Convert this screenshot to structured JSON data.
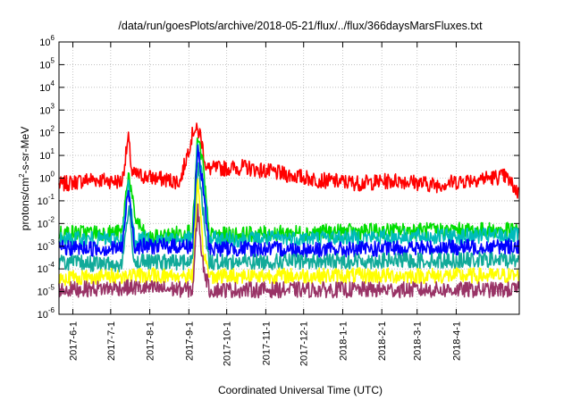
{
  "chart_data": {
    "type": "line",
    "title": "/data/run/goesPlots/archive/2018-05-21/flux/../flux/366daysMarsFluxes.txt",
    "xlabel": "Coordinated Universal Time (UTC)",
    "ylabel_parts": [
      "protons/cm",
      "2",
      "-s-sr-MeV"
    ],
    "yscale": "log",
    "ylim": [
      1e-06,
      1000000.0
    ],
    "xlim": [
      "2017-05-21",
      "2018-05-21"
    ],
    "grid": true,
    "x_ticks": [
      "2017-6-1",
      "2017-7-1",
      "2017-8-1",
      "2017-9-1",
      "2017-10-1",
      "2017-11-1",
      "2017-12-1",
      "2018-1-1",
      "2018-2-1",
      "2018-3-1",
      "2018-4-1"
    ],
    "y_ticks": [
      {
        "base": "10",
        "exp": "-6"
      },
      {
        "base": "10",
        "exp": "-5"
      },
      {
        "base": "10",
        "exp": "-4"
      },
      {
        "base": "10",
        "exp": "-3"
      },
      {
        "base": "10",
        "exp": "-2"
      },
      {
        "base": "10",
        "exp": "-1"
      },
      {
        "base": "10",
        "exp": "0"
      },
      {
        "base": "10",
        "exp": "1"
      },
      {
        "base": "10",
        "exp": "2"
      },
      {
        "base": "10",
        "exp": "3"
      },
      {
        "base": "10",
        "exp": "4"
      },
      {
        "base": "10",
        "exp": "5"
      },
      {
        "base": "10",
        "exp": "6"
      }
    ],
    "series": [
      {
        "color": "#ff0000",
        "points": [
          [
            "2017-05-21",
            0.5
          ],
          [
            "2017-06-15",
            0.9
          ],
          [
            "2017-07-10",
            0.7
          ],
          [
            "2017-07-15",
            60
          ],
          [
            "2017-07-18",
            1.5
          ],
          [
            "2017-08-05",
            1.0
          ],
          [
            "2017-08-25",
            0.7
          ],
          [
            "2017-09-05",
            150
          ],
          [
            "2017-09-10",
            90
          ],
          [
            "2017-09-15",
            2.5
          ],
          [
            "2017-10-15",
            3.0
          ],
          [
            "2017-11-15",
            1.5
          ],
          [
            "2017-12-15",
            0.8
          ],
          [
            "2018-01-15",
            0.6
          ],
          [
            "2018-02-15",
            0.8
          ],
          [
            "2018-03-15",
            0.5
          ],
          [
            "2018-04-15",
            0.9
          ],
          [
            "2018-05-10",
            1.2
          ],
          [
            "2018-05-21",
            0.2
          ]
        ]
      },
      {
        "color": "#00dd00",
        "points": [
          [
            "2017-05-21",
            0.004
          ],
          [
            "2017-07-10",
            0.004
          ],
          [
            "2017-07-15",
            2
          ],
          [
            "2017-07-20",
            0.02
          ],
          [
            "2017-07-30",
            0.002
          ],
          [
            "2017-09-04",
            0.005
          ],
          [
            "2017-09-08",
            60
          ],
          [
            "2017-09-12",
            5
          ],
          [
            "2017-09-17",
            0.003
          ],
          [
            "2017-12-01",
            0.004
          ],
          [
            "2018-03-01",
            0.005
          ],
          [
            "2018-05-21",
            0.005
          ]
        ]
      },
      {
        "color": "#00bbbb",
        "points": [
          [
            "2017-05-21",
            0.002
          ],
          [
            "2017-07-10",
            0.002
          ],
          [
            "2017-07-15",
            0.5
          ],
          [
            "2017-07-20",
            0.002
          ],
          [
            "2017-09-04",
            0.002
          ],
          [
            "2017-09-08",
            30
          ],
          [
            "2017-09-12",
            1
          ],
          [
            "2017-09-17",
            0.002
          ],
          [
            "2018-05-21",
            0.003
          ]
        ]
      },
      {
        "color": "#0000ff",
        "points": [
          [
            "2017-05-21",
            0.0008
          ],
          [
            "2017-07-10",
            0.0008
          ],
          [
            "2017-07-15",
            0.3
          ],
          [
            "2017-07-20",
            0.001
          ],
          [
            "2017-09-04",
            0.001
          ],
          [
            "2017-09-08",
            20
          ],
          [
            "2017-09-12",
            0.5
          ],
          [
            "2017-09-17",
            0.0008
          ],
          [
            "2018-01-01",
            0.0007
          ],
          [
            "2018-05-21",
            0.001
          ]
        ]
      },
      {
        "color": "#11aa99",
        "points": [
          [
            "2017-05-21",
            0.0002
          ],
          [
            "2017-07-10",
            0.00015
          ],
          [
            "2017-07-15",
            0.05
          ],
          [
            "2017-07-20",
            0.0002
          ],
          [
            "2017-09-04",
            0.0002
          ],
          [
            "2017-09-08",
            5
          ],
          [
            "2017-09-12",
            0.05
          ],
          [
            "2017-09-17",
            0.0002
          ],
          [
            "2018-05-21",
            0.00025
          ]
        ]
      },
      {
        "color": "#ffff00",
        "points": [
          [
            "2017-05-21",
            4e-05
          ],
          [
            "2017-07-15",
            5e-05
          ],
          [
            "2017-09-04",
            5e-05
          ],
          [
            "2017-09-08",
            0.5
          ],
          [
            "2017-09-12",
            0.001
          ],
          [
            "2017-09-17",
            5e-05
          ],
          [
            "2018-05-21",
            5e-05
          ]
        ]
      },
      {
        "color": "#993366",
        "points": [
          [
            "2017-05-21",
            1.2e-05
          ],
          [
            "2017-07-15",
            1.5e-05
          ],
          [
            "2017-09-04",
            1.2e-05
          ],
          [
            "2017-09-08",
            0.05
          ],
          [
            "2017-09-12",
            0.0002
          ],
          [
            "2017-09-17",
            1.2e-05
          ],
          [
            "2018-05-21",
            1.2e-05
          ]
        ]
      }
    ]
  }
}
